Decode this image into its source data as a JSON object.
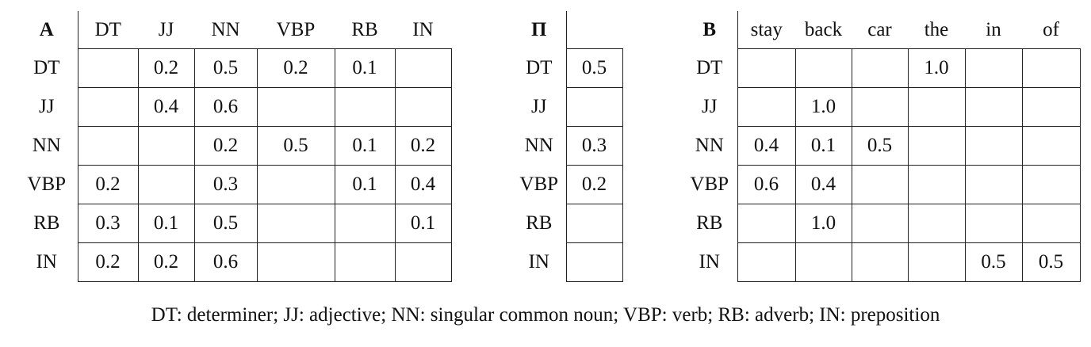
{
  "table_a": {
    "corner": "A",
    "columns": [
      "DT",
      "JJ",
      "NN",
      "VBP",
      "RB",
      "IN"
    ],
    "rows": [
      {
        "label": "DT",
        "cells": [
          "",
          "0.2",
          "0.5",
          "0.2",
          "0.1",
          ""
        ]
      },
      {
        "label": "JJ",
        "cells": [
          "",
          "0.4",
          "0.6",
          "",
          "",
          ""
        ]
      },
      {
        "label": "NN",
        "cells": [
          "",
          "",
          "0.2",
          "0.5",
          "0.1",
          "0.2"
        ]
      },
      {
        "label": "VBP",
        "cells": [
          "0.2",
          "",
          "0.3",
          "",
          "0.1",
          "0.4"
        ]
      },
      {
        "label": "RB",
        "cells": [
          "0.3",
          "0.1",
          "0.5",
          "",
          "",
          "0.1"
        ]
      },
      {
        "label": "IN",
        "cells": [
          "0.2",
          "0.2",
          "0.6",
          "",
          "",
          ""
        ]
      }
    ]
  },
  "table_pi": {
    "corner": "Π",
    "columns": [
      ""
    ],
    "rows": [
      {
        "label": "DT",
        "cells": [
          "0.5"
        ]
      },
      {
        "label": "JJ",
        "cells": [
          ""
        ]
      },
      {
        "label": "NN",
        "cells": [
          "0.3"
        ]
      },
      {
        "label": "VBP",
        "cells": [
          "0.2"
        ]
      },
      {
        "label": "RB",
        "cells": [
          ""
        ]
      },
      {
        "label": "IN",
        "cells": [
          ""
        ]
      }
    ]
  },
  "table_b": {
    "corner": "B",
    "columns": [
      "stay",
      "back",
      "car",
      "the",
      "in",
      "of"
    ],
    "rows": [
      {
        "label": "DT",
        "cells": [
          "",
          "",
          "",
          "1.0",
          "",
          ""
        ]
      },
      {
        "label": "JJ",
        "cells": [
          "",
          "1.0",
          "",
          "",
          "",
          ""
        ]
      },
      {
        "label": "NN",
        "cells": [
          "0.4",
          "0.1",
          "0.5",
          "",
          "",
          ""
        ]
      },
      {
        "label": "VBP",
        "cells": [
          "0.6",
          "0.4",
          "",
          "",
          "",
          ""
        ]
      },
      {
        "label": "RB",
        "cells": [
          "",
          "1.0",
          "",
          "",
          "",
          ""
        ]
      },
      {
        "label": "IN",
        "cells": [
          "",
          "",
          "",
          "",
          "0.5",
          "0.5"
        ]
      }
    ]
  },
  "caption": "DT: determiner; JJ: adjective; NN: singular common noun; VBP: verb; RB: adverb; IN: preposition"
}
